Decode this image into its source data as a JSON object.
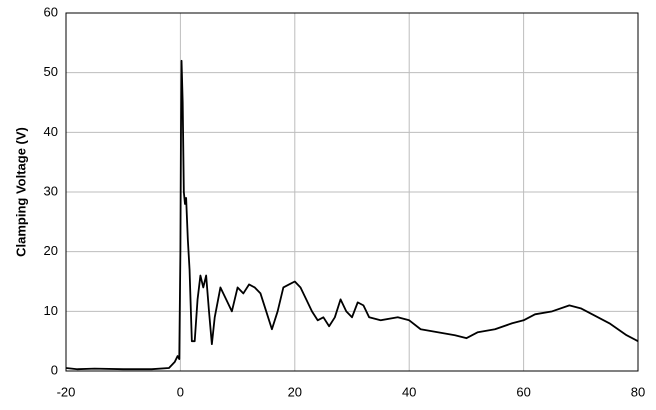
{
  "chart_data": {
    "type": "line",
    "y_label": "Clamping Voltage (V)",
    "x": [
      -20,
      -18,
      -15,
      -10,
      -5,
      -2,
      -1,
      -0.5,
      -0.2,
      0,
      0.1,
      0.2,
      0.4,
      0.6,
      0.8,
      1,
      1.3,
      1.6,
      2,
      2.5,
      3,
      3.5,
      4,
      4.5,
      5,
      5.5,
      6,
      7,
      8,
      9,
      10,
      11,
      12,
      13,
      14,
      15,
      16,
      17,
      18,
      19,
      20,
      21,
      22,
      23,
      24,
      25,
      26,
      27,
      28,
      29,
      30,
      31,
      32,
      33,
      35,
      38,
      40,
      42,
      45,
      48,
      50,
      52,
      55,
      58,
      60,
      62,
      65,
      68,
      70,
      72,
      75,
      78,
      80
    ],
    "series": [
      {
        "color": "#000000",
        "values": [
          0.5,
          0.3,
          0.4,
          0.3,
          0.3,
          0.5,
          1.5,
          2.5,
          2,
          20,
          40,
          52,
          45,
          30,
          28,
          29,
          22,
          17,
          5,
          5,
          12,
          16,
          14,
          16,
          10,
          4.5,
          9,
          14,
          12,
          10,
          14,
          13,
          14.5,
          14,
          13,
          10,
          7,
          10,
          14,
          14.5,
          15,
          14,
          12,
          10,
          8.5,
          9,
          7.5,
          9,
          12,
          10,
          9,
          11.5,
          11,
          9,
          8.5,
          9,
          8.5,
          7,
          6.5,
          6,
          5.5,
          6.5,
          7,
          8,
          8.5,
          9.5,
          10,
          11,
          10.5,
          9.5,
          8,
          6,
          5
        ]
      }
    ],
    "xlim": [
      -20,
      80
    ],
    "ylim": [
      0,
      60
    ],
    "xticks": [
      -20,
      0,
      20,
      40,
      60,
      80
    ],
    "yticks": [
      0,
      10,
      20,
      30,
      40,
      50,
      60
    ],
    "grid": true
  }
}
